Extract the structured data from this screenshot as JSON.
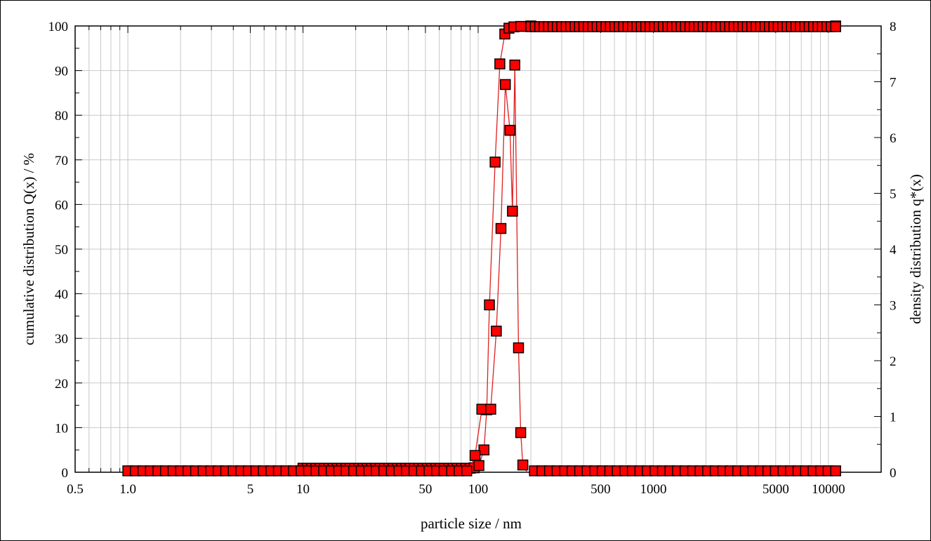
{
  "chart_data": {
    "type": "scatter",
    "title": "",
    "xlabel": "particle size / nm",
    "ylabel": "cumulative distribution Q(x) / %",
    "y2label": "density distribution q*(x)",
    "x_scale": "log",
    "xlim": [
      0.5,
      20000
    ],
    "ylim": [
      0,
      100
    ],
    "y2lim": [
      0,
      8
    ],
    "grid": true,
    "x_tick_values": [
      0.5,
      1,
      5,
      10,
      50,
      100,
      500,
      1000,
      5000,
      10000
    ],
    "x_tick_labels": [
      "0.5",
      "1.0",
      "5",
      "10",
      "50",
      "100",
      "500",
      "1000",
      "5000",
      "10000"
    ],
    "y_tick_labels": [
      "0",
      "10",
      "20",
      "30",
      "40",
      "50",
      "60",
      "70",
      "80",
      "90",
      "100"
    ],
    "y2_tick_labels": [
      "0",
      "1",
      "2",
      "3",
      "4",
      "5",
      "6",
      "7",
      "8"
    ],
    "series": [
      {
        "axis": "left",
        "x_range": [
          1,
          11000
        ],
        "values": [
          [
            95,
            1.0
          ],
          [
            101,
            1.5
          ],
          [
            108,
            5
          ],
          [
            112,
            14
          ],
          [
            116,
            37.5
          ],
          [
            125,
            69.5
          ],
          [
            133,
            91.5
          ],
          [
            142,
            98.2
          ],
          [
            150,
            99.5
          ],
          [
            160,
            99.8
          ],
          [
            175,
            99.9
          ],
          [
            200,
            100
          ],
          [
            11000,
            100
          ]
        ]
      },
      {
        "axis": "right",
        "x_range": [
          1,
          11000
        ],
        "values": [
          [
            96,
            0.3
          ],
          [
            105,
            1.13
          ],
          [
            118,
            1.13
          ],
          [
            127,
            2.53
          ],
          [
            135,
            4.37
          ],
          [
            143,
            6.95
          ],
          [
            152,
            6.13
          ],
          [
            157,
            4.68
          ],
          [
            162,
            7.3
          ],
          [
            170,
            2.23
          ],
          [
            175,
            0.71
          ],
          [
            180,
            0.13
          ]
        ]
      }
    ],
    "colors": {
      "marker_fill": "#ff0000",
      "marker_stroke": "#000000",
      "fit_line": "#e02020",
      "grid": "#c8c8c8"
    }
  }
}
